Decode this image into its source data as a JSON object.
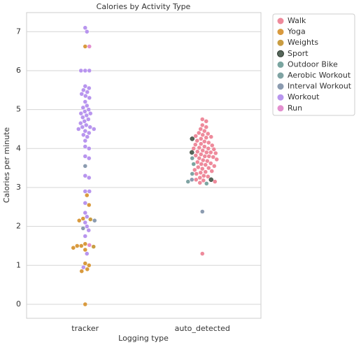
{
  "chart_data": {
    "type": "swarm",
    "title": "Calories by Activity Type",
    "x_label": "Logging type",
    "y_label": "Calories per minute",
    "categories": [
      "tracker",
      "auto_detected"
    ],
    "ylim": [
      -0.36,
      7.49
    ],
    "yticks": [
      0,
      1,
      2,
      3,
      4,
      5,
      6,
      7
    ],
    "grid": true,
    "legend": "outside upper right",
    "series": [
      {
        "name": "Walk",
        "color": "#ee8a9b",
        "x": [
          "auto_detected",
          "auto_detected",
          "auto_detected",
          "auto_detected",
          "auto_detected",
          "auto_detected",
          "auto_detected",
          "auto_detected",
          "auto_detected",
          "auto_detected",
          "auto_detected",
          "auto_detected",
          "auto_detected",
          "auto_detected",
          "auto_detected",
          "auto_detected",
          "auto_detected",
          "auto_detected",
          "auto_detected",
          "auto_detected",
          "auto_detected",
          "auto_detected",
          "auto_detected",
          "auto_detected",
          "auto_detected",
          "auto_detected",
          "auto_detected",
          "auto_detected",
          "auto_detected",
          "auto_detected",
          "auto_detected",
          "auto_detected",
          "auto_detected",
          "auto_detected",
          "auto_detected",
          "auto_detected",
          "auto_detected",
          "auto_detected",
          "auto_detected",
          "auto_detected",
          "auto_detected",
          "auto_detected",
          "auto_detected",
          "auto_detected",
          "auto_detected",
          "auto_detected",
          "auto_detected",
          "auto_detected",
          "auto_detected",
          "auto_detected",
          "auto_detected",
          "auto_detected",
          "auto_detected",
          "auto_detected",
          "auto_detected",
          "auto_detected",
          "auto_detected",
          "auto_detected",
          "auto_detected"
        ],
        "values": [
          4.75,
          4.7,
          4.6,
          4.55,
          4.5,
          4.45,
          4.4,
          4.38,
          4.35,
          4.32,
          4.3,
          4.28,
          4.25,
          4.2,
          4.18,
          4.15,
          4.12,
          4.1,
          4.08,
          4.05,
          4.02,
          4.0,
          4.0,
          3.98,
          3.95,
          3.92,
          3.9,
          3.9,
          3.88,
          3.85,
          3.82,
          3.8,
          3.8,
          3.78,
          3.75,
          3.72,
          3.7,
          3.68,
          3.65,
          3.62,
          3.6,
          3.58,
          3.55,
          3.52,
          3.5,
          3.48,
          3.45,
          3.42,
          3.4,
          3.38,
          3.35,
          3.3,
          3.28,
          3.25,
          3.2,
          3.18,
          3.15,
          3.12,
          1.3
        ]
      },
      {
        "name": "Yoga",
        "color": "#d99a3e",
        "x": [
          "tracker",
          "tracker",
          "tracker",
          "tracker",
          "tracker",
          "tracker",
          "tracker",
          "tracker",
          "tracker",
          "tracker",
          "tracker",
          "tracker",
          "tracker",
          "tracker",
          "tracker"
        ],
        "values": [
          6.62,
          2.8,
          2.55,
          2.2,
          2.15,
          1.5,
          1.45,
          1.5,
          1.55,
          1.4,
          1.05,
          1.0,
          0.9,
          0.85,
          0.0
        ]
      },
      {
        "name": "Weights",
        "color": "#c99d42",
        "x": [
          "tracker",
          "tracker"
        ],
        "values": [
          1.48,
          2.18
        ]
      },
      {
        "name": "Sport",
        "color": "#56665a",
        "x": [
          "auto_detected",
          "auto_detected",
          "auto_detected"
        ],
        "values": [
          4.25,
          3.9,
          3.2
        ]
      },
      {
        "name": "Outdoor Bike",
        "color": "#7aa5a0",
        "x": [
          "auto_detected",
          "auto_detected"
        ],
        "values": [
          3.6,
          3.1
        ]
      },
      {
        "name": "Aerobic Workout",
        "color": "#7fa3a3",
        "x": [
          "auto_detected",
          "auto_detected",
          "auto_detected"
        ],
        "values": [
          3.75,
          3.35,
          3.15
        ]
      },
      {
        "name": "Interval Workout",
        "color": "#8b9bb0",
        "x": [
          "tracker",
          "tracker",
          "tracker",
          "auto_detected",
          "auto_detected"
        ],
        "values": [
          3.55,
          2.15,
          1.95,
          3.2,
          2.38
        ]
      },
      {
        "name": "Workout",
        "color": "#b895ee",
        "x": [
          "tracker",
          "tracker",
          "tracker",
          "tracker",
          "tracker",
          "tracker",
          "tracker",
          "tracker",
          "tracker",
          "tracker",
          "tracker",
          "tracker",
          "tracker",
          "tracker",
          "tracker",
          "tracker",
          "tracker",
          "tracker",
          "tracker",
          "tracker",
          "tracker",
          "tracker",
          "tracker",
          "tracker",
          "tracker",
          "tracker",
          "tracker",
          "tracker",
          "tracker",
          "tracker",
          "tracker",
          "tracker",
          "tracker",
          "tracker",
          "tracker",
          "tracker",
          "tracker",
          "tracker",
          "tracker",
          "tracker",
          "tracker",
          "tracker",
          "tracker",
          "tracker",
          "tracker",
          "tracker",
          "tracker",
          "tracker",
          "tracker",
          "tracker",
          "tracker"
        ],
        "values": [
          7.1,
          7.0,
          6.0,
          6.0,
          6.0,
          5.6,
          5.55,
          5.5,
          5.45,
          5.4,
          5.35,
          5.3,
          5.2,
          5.1,
          5.05,
          5.0,
          4.95,
          4.9,
          4.85,
          4.8,
          4.75,
          4.7,
          4.65,
          4.6,
          4.55,
          4.55,
          4.5,
          4.5,
          4.45,
          4.4,
          4.35,
          4.3,
          4.2,
          4.05,
          4.0,
          3.8,
          3.75,
          3.3,
          3.25,
          2.9,
          2.9,
          2.6,
          2.35,
          2.25,
          2.1,
          2.0,
          1.9,
          1.75,
          1.3,
          0.95,
          4.9
        ]
      },
      {
        "name": "Run",
        "color": "#e38fcf",
        "x": [
          "tracker",
          "tracker"
        ],
        "values": [
          6.62,
          1.52
        ]
      }
    ]
  }
}
